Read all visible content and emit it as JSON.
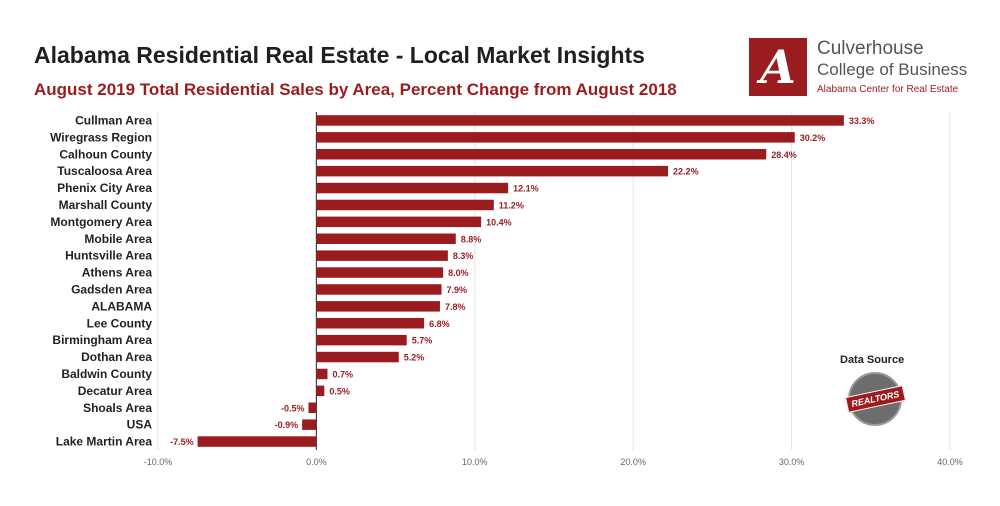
{
  "header": {
    "title": "Alabama Residential Real Estate - Local Market Insights",
    "subtitle": "August 2019 Total Residential Sales by Area, Percent Change from August 2018"
  },
  "logo": {
    "letter": "A",
    "line1": "Culverhouse",
    "line2": "College of Business",
    "line3": "Alabama Center for Real Estate"
  },
  "source": {
    "label": "Data Source",
    "badge_text": "REALTORS"
  },
  "colors": {
    "bar": "#9b1c1f",
    "label": "#9b1c1f",
    "grid": "#e3e3e3",
    "axis": "#444444",
    "tick": "#666666"
  },
  "chart_data": {
    "type": "bar",
    "orientation": "horizontal",
    "categories": [
      "Cullman Area",
      "Wiregrass Region",
      "Calhoun County",
      "Tuscaloosa Area",
      "Phenix City Area",
      "Marshall County",
      "Montgomery Area",
      "Mobile Area",
      "Huntsville Area",
      "Athens Area",
      "Gadsden Area",
      "ALABAMA",
      "Lee County",
      "Birmingham Area",
      "Dothan Area",
      "Baldwin County",
      "Decatur Area",
      "Shoals Area",
      "USA",
      "Lake Martin Area"
    ],
    "values": [
      33.3,
      30.2,
      28.4,
      22.2,
      12.1,
      11.2,
      10.4,
      8.8,
      8.3,
      8.0,
      7.9,
      7.8,
      6.8,
      5.7,
      5.2,
      0.7,
      0.5,
      -0.5,
      -0.9,
      -7.5
    ],
    "data_labels": [
      "33.3%",
      "30.2%",
      "28.4%",
      "22.2%",
      "12.1%",
      "11.2%",
      "10.4%",
      "8.8%",
      "8.3%",
      "8.0%",
      "7.9%",
      "7.8%",
      "6.8%",
      "5.7%",
      "5.2%",
      "0.7%",
      "0.5%",
      "-0.5%",
      "-0.9%",
      "-7.5%"
    ],
    "x_ticks": [
      -10,
      0,
      10,
      20,
      30,
      40
    ],
    "x_tick_labels": [
      "-10.0%",
      "0.0%",
      "10.0%",
      "20.0%",
      "30.0%",
      "40.0%"
    ],
    "xlim": [
      -10,
      40
    ],
    "grid": true,
    "title": "Alabama Residential Real Estate - Local Market Insights",
    "xlabel": "",
    "ylabel": ""
  }
}
